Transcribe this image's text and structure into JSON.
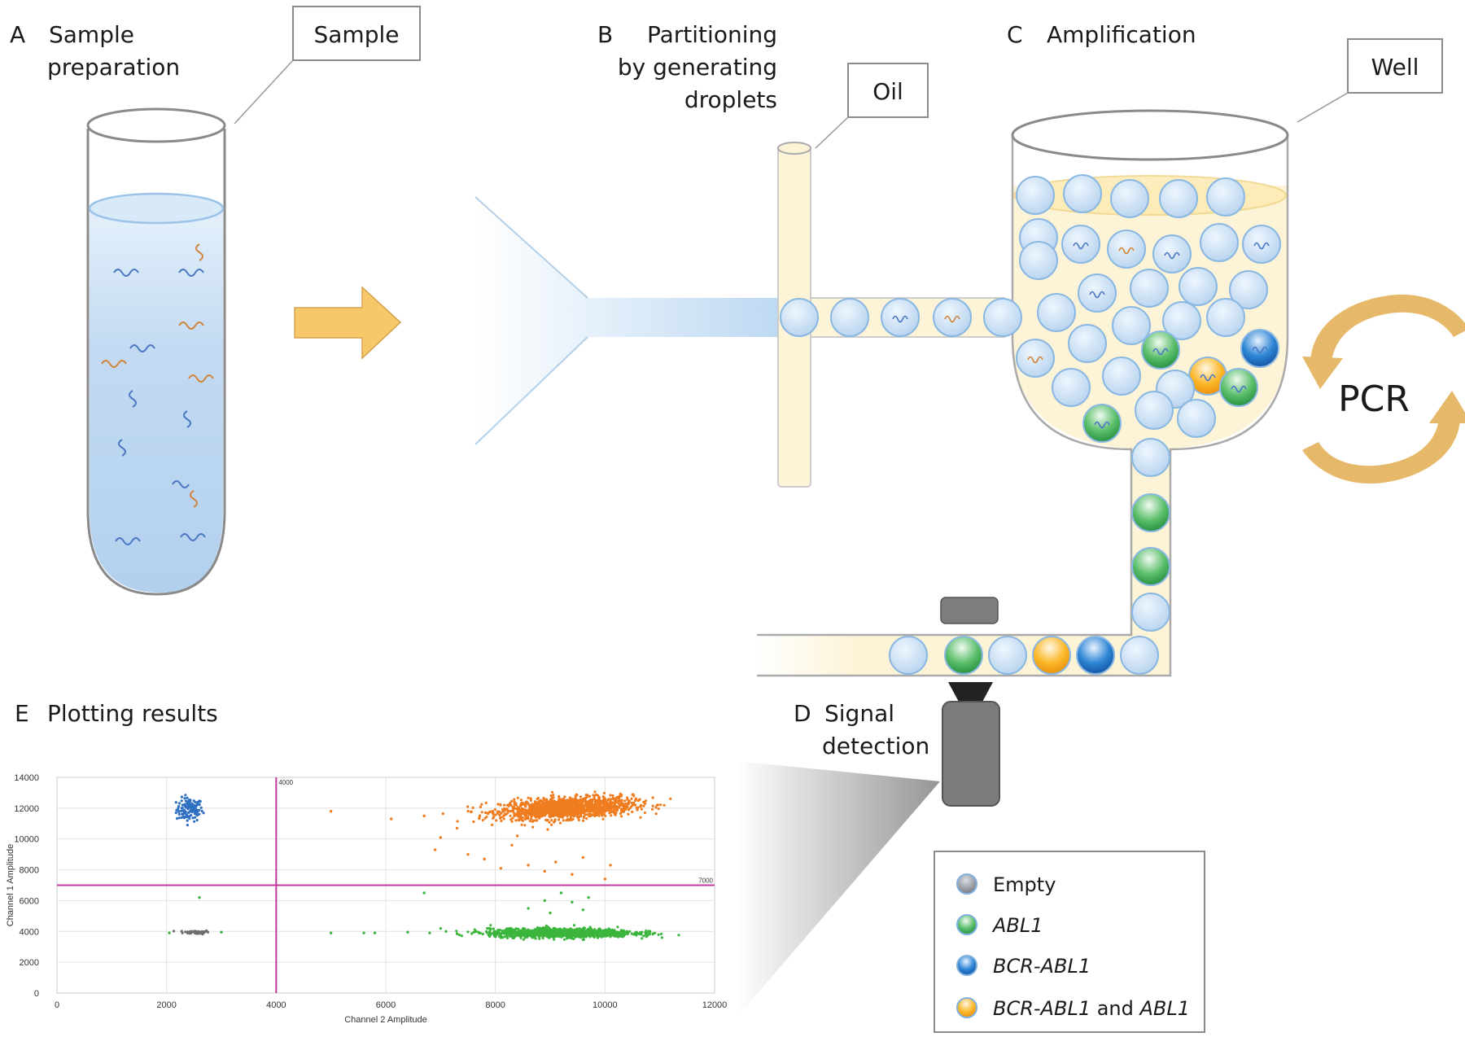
{
  "panels": {
    "a": {
      "letter": "A",
      "title_line1": "Sample",
      "title_line2": "preparation",
      "callout": "Sample"
    },
    "b": {
      "letter": "B",
      "title_line1": "Partitioning",
      "title_line2": "by generating",
      "title_line3": "droplets",
      "callout": "Oil"
    },
    "c": {
      "letter": "C",
      "title": "Amplification",
      "callout": "Well",
      "cycle_label": "PCR"
    },
    "d": {
      "letter": "D",
      "title_line1": "Signal",
      "title_line2": "detection"
    },
    "e": {
      "letter": "E",
      "title": "Plotting results"
    }
  },
  "legend": {
    "items": [
      {
        "label": "Empty",
        "color": "#8a8f96"
      },
      {
        "label": "ABL1",
        "color": "#3aa655"
      },
      {
        "label": "BCR-ABL1",
        "color": "#1f73c4"
      },
      {
        "label": "BCR-ABL1",
        "suffix": " and ",
        "label2": "ABL1",
        "color": "#f5a317"
      }
    ]
  },
  "colors": {
    "liquid": "#bcd8f2",
    "droplet": "#cfe3f6",
    "oil": "#fdf3d6",
    "arrow": "#f7c86a",
    "pcr_arrow": "#e6b96a",
    "threshold": "#c0399b"
  },
  "chart_data": {
    "type": "scatter",
    "xlabel": "Channel 2 Amplitude",
    "ylabel": "Channel 1 Amplitude",
    "xlim": [
      0,
      12000
    ],
    "ylim": [
      0,
      14000
    ],
    "xticks": [
      0,
      2000,
      4000,
      6000,
      8000,
      10000,
      12000
    ],
    "yticks": [
      0,
      2000,
      4000,
      6000,
      8000,
      10000,
      12000,
      14000
    ],
    "grid": true,
    "thresholds": {
      "x": 4000,
      "y": 7000,
      "x_label": "4000",
      "y_label": "7000"
    },
    "clusters": [
      {
        "name": "BCR-ABL1",
        "color": "#2f6fc1",
        "center": [
          2420,
          11900
        ],
        "spread": [
          120,
          380
        ],
        "count": 120
      },
      {
        "name": "Empty",
        "color": "#6e6e6e",
        "center": [
          2550,
          3950
        ],
        "spread": [
          120,
          60
        ],
        "count": 60
      },
      {
        "name": "BCR-ABL1 and ABL1",
        "color": "#ef7c1e",
        "center": [
          9300,
          12000
        ],
        "spread": [
          600,
          330
        ],
        "count": 1500
      },
      {
        "name": "ABL1",
        "color": "#3cb53c",
        "center": [
          9200,
          3900
        ],
        "spread": [
          650,
          140
        ],
        "count": 1300
      }
    ],
    "scatter_orange": [
      [
        5000,
        11800
      ],
      [
        6100,
        11300
      ],
      [
        6700,
        11500
      ],
      [
        7000,
        10100
      ],
      [
        6900,
        9300
      ],
      [
        7500,
        9000
      ],
      [
        7800,
        8700
      ],
      [
        8100,
        8100
      ],
      [
        8300,
        9600
      ],
      [
        8600,
        8300
      ],
      [
        8900,
        7900
      ],
      [
        9100,
        8500
      ],
      [
        9400,
        7700
      ],
      [
        9600,
        8800
      ],
      [
        10000,
        7400
      ],
      [
        10100,
        8300
      ],
      [
        7300,
        10700
      ],
      [
        8400,
        10200
      ]
    ],
    "scatter_green": [
      [
        5000,
        3900
      ],
      [
        5600,
        3900
      ],
      [
        5800,
        3900
      ],
      [
        6400,
        3950
      ],
      [
        6700,
        6500
      ],
      [
        6800,
        3900
      ],
      [
        7100,
        4000
      ],
      [
        7300,
        3850
      ],
      [
        7700,
        3900
      ],
      [
        8600,
        5500
      ],
      [
        8900,
        6000
      ],
      [
        9200,
        6500
      ],
      [
        9400,
        5900
      ],
      [
        9600,
        5400
      ],
      [
        9000,
        5200
      ],
      [
        9700,
        6200
      ],
      [
        10400,
        4000
      ],
      [
        2600,
        6200
      ],
      [
        3000,
        3950
      ],
      [
        2050,
        3900
      ]
    ]
  }
}
